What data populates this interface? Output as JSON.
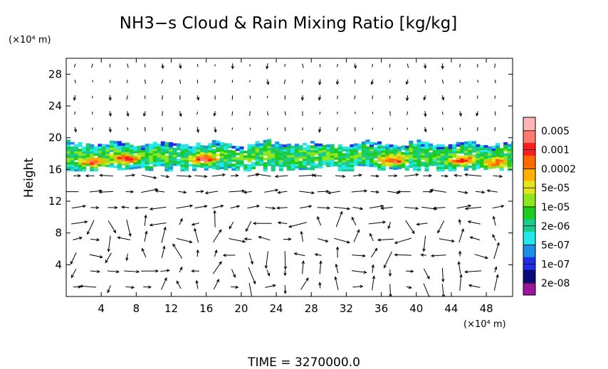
{
  "title": "NH3−s Cloud & Rain Mixing Ratio [kg/kg]",
  "footer": {
    "time_label": "TIME  =  3270000.0"
  },
  "chart_data": {
    "type": "heatmap",
    "title": "NH3−s Cloud & Rain Mixing Ratio [kg/kg]",
    "xlabel": "",
    "ylabel": "Height",
    "x_unit": "(×10⁴ m)",
    "y_unit": "(×10⁴ m)",
    "xlim": [
      0,
      51
    ],
    "ylim": [
      0,
      30
    ],
    "x_ticks": [
      4,
      8,
      12,
      16,
      20,
      24,
      28,
      32,
      36,
      40,
      44,
      48
    ],
    "y_ticks": [
      4,
      8,
      12,
      16,
      20,
      24,
      28
    ],
    "cloud_layer": {
      "bottom": 16,
      "top": 19.5
    },
    "colorbar": {
      "labels": [
        "0.005",
        "0.001",
        "0.0002",
        "5e-05",
        "1e-05",
        "2e-06",
        "5e-07",
        "1e-07",
        "2e-08"
      ],
      "colors": [
        "#9a169a",
        "#0a0a78",
        "#1f2fe6",
        "#1a90e6",
        "#23e8e8",
        "#1acc8a",
        "#1ecc1e",
        "#8ee61e",
        "#e6e61e",
        "#ffb000",
        "#ff6a00",
        "#ff1e1e",
        "#ff7a70",
        "#ffb6b6"
      ]
    },
    "vector_field": true
  }
}
